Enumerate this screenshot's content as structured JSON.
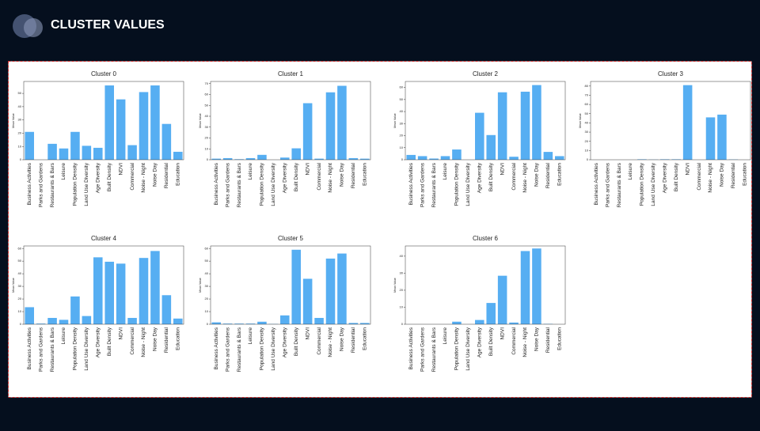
{
  "title": "CLUSTER VALUES",
  "chart_data": [
    {
      "type": "bar",
      "title": "Cluster 0",
      "y_label": "Mean Value",
      "color": "#56aef2",
      "categories": [
        "Business Activities",
        "Parks and Gardens",
        "Restaurants & Bars",
        "Leisure",
        "Population Density",
        "Land Use Diversity",
        "Age Diversity",
        "Built Density",
        "NDVI",
        "Commercial",
        "Noise - Night",
        "Noise Day",
        "Residential",
        "Education"
      ],
      "values": [
        21,
        0,
        12,
        8.5,
        21,
        10.5,
        9,
        56,
        45.5,
        11,
        51,
        56,
        27,
        6
      ],
      "ylim": [
        0,
        59
      ],
      "yticks": [
        0,
        10,
        20,
        30,
        40,
        50
      ]
    },
    {
      "type": "bar",
      "title": "Cluster 1",
      "y_label": "Mean Value",
      "color": "#56aef2",
      "categories": [
        "Business Activities",
        "Parks and Gardens",
        "Restaurants & Bars",
        "Leisure",
        "Population Density",
        "Land Use Diversity",
        "Age Diversity",
        "Built Density",
        "NDVI",
        "Commercial",
        "Noise - Night",
        "Noise Day",
        "Residential",
        "Education"
      ],
      "values": [
        1,
        1.5,
        0.5,
        1.5,
        4.5,
        0,
        2,
        10.5,
        52,
        1,
        62,
        68,
        1.5,
        1
      ],
      "ylim": [
        0,
        72
      ],
      "yticks": [
        0,
        10,
        20,
        30,
        40,
        50,
        60,
        70
      ]
    },
    {
      "type": "bar",
      "title": "Cluster 2",
      "y_label": "Mean Value",
      "color": "#56aef2",
      "categories": [
        "Business Activities",
        "Parks and Gardens",
        "Restaurants & Bars",
        "Leisure",
        "Population Density",
        "Land Use Diversity",
        "Age Diversity",
        "Built Density",
        "NDVI",
        "Commercial",
        "Noise - Night",
        "Noise Day",
        "Residential",
        "Education"
      ],
      "values": [
        4,
        3,
        1,
        3,
        8.5,
        0,
        39,
        20.5,
        56,
        2.5,
        56.5,
        62,
        6.5,
        3
      ],
      "ylim": [
        0,
        65
      ],
      "yticks": [
        0,
        10,
        20,
        30,
        40,
        50,
        60
      ]
    },
    {
      "type": "bar",
      "title": "Cluster 3",
      "y_label": "Mean Value",
      "color": "#56aef2",
      "categories": [
        "Business Activities",
        "Parks and Gardens",
        "Restaurants & Bars",
        "Leisure",
        "Population Density",
        "Land Use Diversity",
        "Age Diversity",
        "Built Density",
        "NDVI",
        "Commercial",
        "Noise - Night",
        "Noise Day",
        "Residential",
        "Education"
      ],
      "values": [
        0,
        0,
        0,
        0,
        0.5,
        0.2,
        0.5,
        0.5,
        81,
        0,
        46,
        49,
        0.3,
        0
      ],
      "ylim": [
        0,
        85
      ],
      "yticks": [
        0,
        10,
        20,
        30,
        40,
        50,
        60,
        70,
        80
      ]
    },
    {
      "type": "bar",
      "title": "Cluster 4",
      "y_label": "Mean Value",
      "color": "#56aef2",
      "categories": [
        "Business Activities",
        "Parks and Gardens",
        "Restaurants & Bars",
        "Leisure",
        "Population Density",
        "Land Use Diversity",
        "Age Diversity",
        "Built Density",
        "NDVI",
        "Commercial",
        "Noise - Night",
        "Noise Day",
        "Residential",
        "Education"
      ],
      "values": [
        13.5,
        0.5,
        5,
        3.5,
        22,
        6.5,
        53,
        49.5,
        48,
        5,
        52.5,
        58,
        23,
        4.5
      ],
      "ylim": [
        0,
        62
      ],
      "yticks": [
        0,
        10,
        20,
        30,
        40,
        50,
        60
      ]
    },
    {
      "type": "bar",
      "title": "Cluster 5",
      "y_label": "Mean Value",
      "color": "#56aef2",
      "categories": [
        "Business Activities",
        "Parks and Gardens",
        "Restaurants & Bars",
        "Leisure",
        "Population Density",
        "Land Use Diversity",
        "Age Diversity",
        "Built Density",
        "NDVI",
        "Commercial",
        "Noise - Night",
        "Noise Day",
        "Residential",
        "Education"
      ],
      "values": [
        1.5,
        0.5,
        0.5,
        0.5,
        2,
        0.2,
        7,
        59,
        36,
        5,
        52,
        56,
        1,
        1
      ],
      "ylim": [
        0,
        62
      ],
      "yticks": [
        0,
        10,
        20,
        30,
        40,
        50,
        60
      ]
    },
    {
      "type": "bar",
      "title": "Cluster 6",
      "y_label": "Mean Value",
      "color": "#56aef2",
      "categories": [
        "Business Activities",
        "Parks and Gardens",
        "Restaurants & Bars",
        "Leisure",
        "Population Density",
        "Land Use Diversity",
        "Age Diversity",
        "Built Density",
        "NDVI",
        "Commercial",
        "Noise - Night",
        "Noise Day",
        "Residential",
        "Education"
      ],
      "values": [
        0,
        0,
        0,
        0,
        1.5,
        0,
        2.5,
        12.5,
        28.5,
        1,
        43,
        44.5,
        0.2,
        0
      ],
      "ylim": [
        0,
        46
      ],
      "yticks": [
        0,
        10,
        20,
        30,
        40
      ]
    }
  ]
}
